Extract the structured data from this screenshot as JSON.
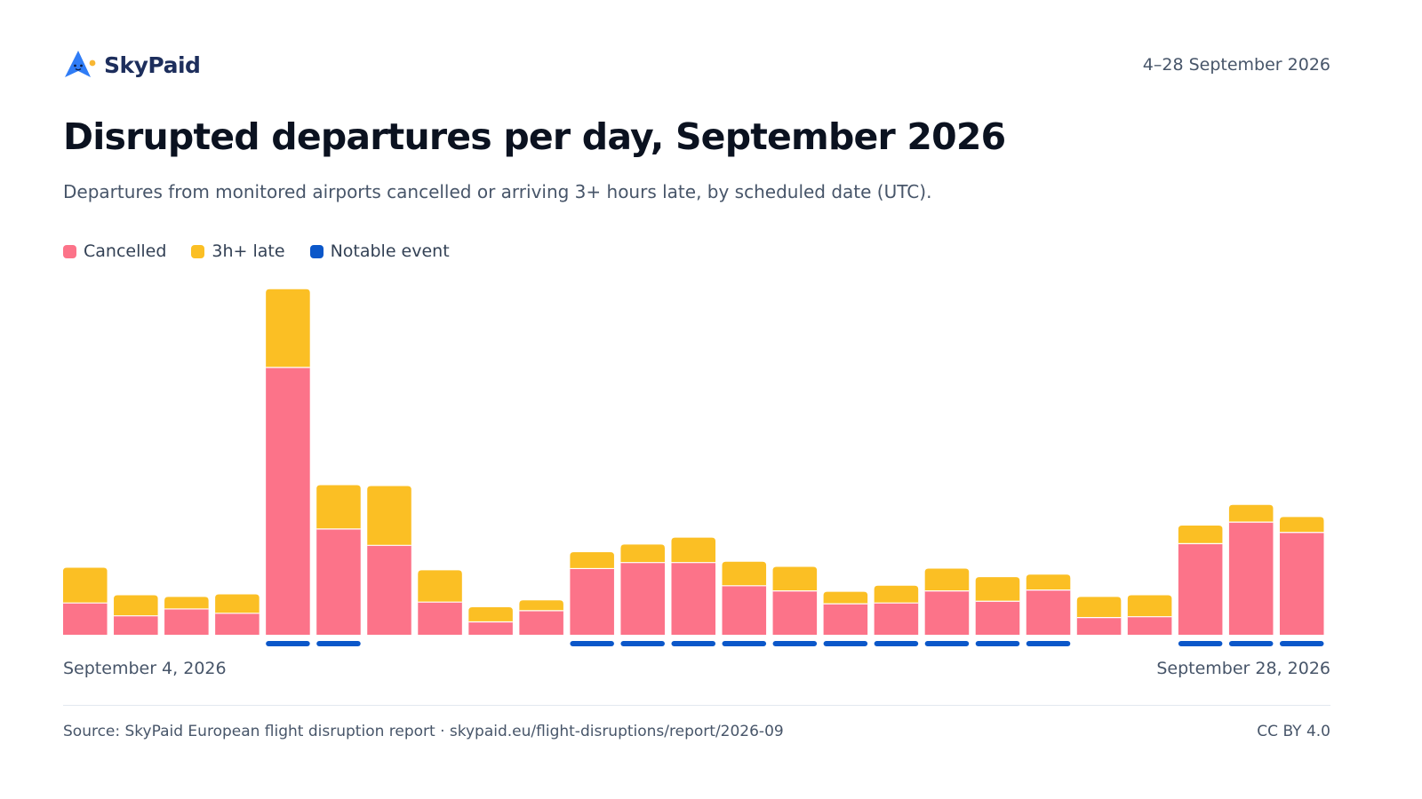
{
  "brand": {
    "name": "SkyPaid"
  },
  "header": {
    "date_range": "4–28 September 2026"
  },
  "colors": {
    "cancelled": "#fc7389",
    "late": "#fbbf24",
    "notable": "#0b57c9",
    "brand_blue": "#2f7cf6",
    "brand_accent": "#f8b733"
  },
  "chart_data": {
    "type": "bar",
    "stacked": true,
    "title": "Disrupted departures per day, September 2026",
    "subtitle": "Departures from monitored airports cancelled or arriving 3+ hours late, by scheduled date (UTC).",
    "legend": [
      {
        "label": "Cancelled",
        "color_key": "cancelled"
      },
      {
        "label": "3h+ late",
        "color_key": "late"
      },
      {
        "label": "Notable event",
        "color_key": "notable"
      }
    ],
    "legend_position": "top-left",
    "categories": [
      "2026-09-04",
      "2026-09-05",
      "2026-09-06",
      "2026-09-07",
      "2026-09-08",
      "2026-09-09",
      "2026-09-10",
      "2026-09-11",
      "2026-09-12",
      "2026-09-13",
      "2026-09-14",
      "2026-09-15",
      "2026-09-16",
      "2026-09-17",
      "2026-09-18",
      "2026-09-19",
      "2026-09-20",
      "2026-09-21",
      "2026-09-22",
      "2026-09-23",
      "2026-09-24",
      "2026-09-25",
      "2026-09-26",
      "2026-09-27",
      "2026-09-28"
    ],
    "series": [
      {
        "name": "Cancelled",
        "values": [
          37,
          22,
          30,
          25,
          311,
          123,
          104,
          38,
          15,
          28,
          77,
          84,
          84,
          57,
          51,
          36,
          37,
          51,
          39,
          52,
          20,
          21,
          106,
          131,
          119
        ]
      },
      {
        "name": "3h+ late",
        "values": [
          41,
          24,
          14,
          22,
          91,
          51,
          69,
          37,
          17,
          12,
          19,
          21,
          29,
          28,
          28,
          14,
          20,
          26,
          28,
          18,
          24,
          25,
          21,
          20,
          18
        ]
      }
    ],
    "notable_event": [
      false,
      false,
      false,
      false,
      true,
      true,
      false,
      false,
      false,
      false,
      true,
      true,
      true,
      true,
      true,
      true,
      true,
      true,
      true,
      true,
      false,
      false,
      true,
      true,
      true
    ],
    "ylim": [
      0,
      410
    ],
    "grid": false,
    "x_tick_labels": {
      "start": "September 4, 2026",
      "end": "September 28, 2026"
    }
  },
  "footer": {
    "source": "Source: SkyPaid European flight disruption report · skypaid.eu/flight-disruptions/report/2026-09",
    "license": "CC BY 4.0"
  }
}
